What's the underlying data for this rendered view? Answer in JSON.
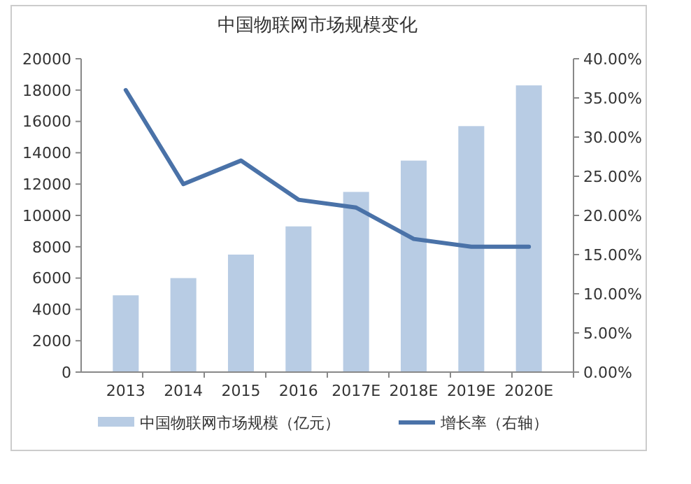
{
  "chart_data": {
    "type": "bar",
    "title": "中国物联网市场规模变化",
    "categories": [
      "2013",
      "2014",
      "2015",
      "2016",
      "2017E",
      "2018E",
      "2019E",
      "2020E"
    ],
    "series": [
      {
        "name": "中国物联网市场规模（亿元）",
        "color": "#b8cce4",
        "values": [
          4900,
          6000,
          7500,
          9300,
          11500,
          13500,
          15700,
          18300
        ]
      },
      {
        "name": "增长率（右轴）",
        "type": "line",
        "axis": "y2",
        "color": "#4a72a8",
        "values": [
          36,
          24,
          27,
          22,
          21,
          17,
          16,
          16
        ]
      }
    ],
    "ylim": [
      0,
      20000
    ],
    "yticks": [
      0,
      2000,
      4000,
      6000,
      8000,
      10000,
      12000,
      14000,
      16000,
      18000,
      20000
    ],
    "y2lim": [
      0,
      40
    ],
    "y2ticks": [
      {
        "value": 0,
        "label": "0.00%"
      },
      {
        "value": 5,
        "label": "5.00%"
      },
      {
        "value": 10,
        "label": "10.00%"
      },
      {
        "value": 15,
        "label": "15.00%"
      },
      {
        "value": 20,
        "label": "20.00%"
      },
      {
        "value": 25,
        "label": "25.00%"
      },
      {
        "value": 30,
        "label": "30.00%"
      },
      {
        "value": 35,
        "label": "35.00%"
      },
      {
        "value": 40,
        "label": "40.00%"
      }
    ],
    "legend": "bottom",
    "grid": false
  }
}
